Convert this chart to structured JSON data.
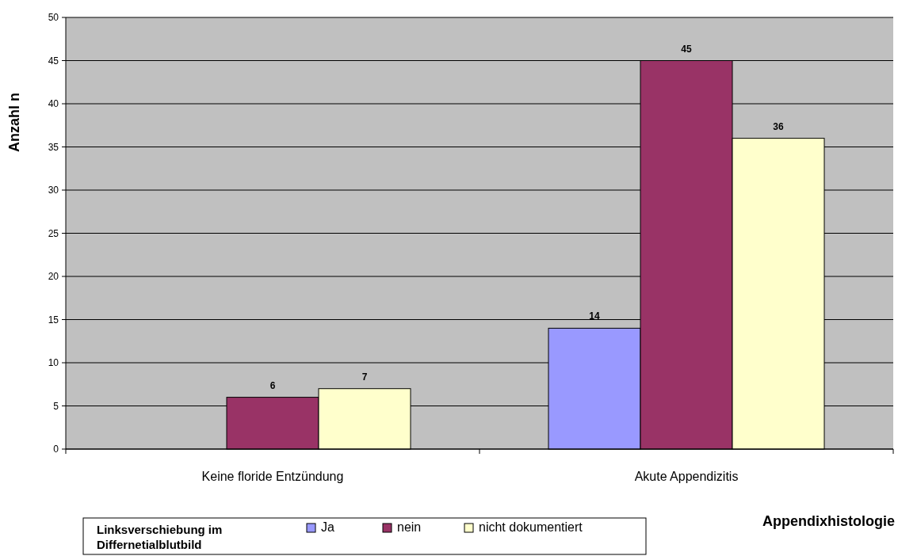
{
  "chart_data": {
    "type": "bar",
    "xlabel": "Appendixhistologie",
    "ylabel": "Anzahl n",
    "legend_title": "Linksverschiebung im Differnetialblutbild",
    "categories": [
      "Keine floride Entzündung",
      "Akute Appendizitis"
    ],
    "series": [
      {
        "name": "Ja",
        "color": "#9999ff",
        "values": [
          null,
          14
        ]
      },
      {
        "name": "nein",
        "color": "#993366",
        "values": [
          6,
          45
        ]
      },
      {
        "name": "nicht dokumentiert",
        "color": "#ffffcc",
        "values": [
          7,
          36
        ]
      }
    ],
    "ylim": [
      0,
      50
    ],
    "yticks": [
      0,
      5,
      10,
      15,
      20,
      25,
      30,
      35,
      40,
      45,
      50
    ],
    "grid": "y",
    "legend": "bottom left",
    "data_labels": true
  }
}
